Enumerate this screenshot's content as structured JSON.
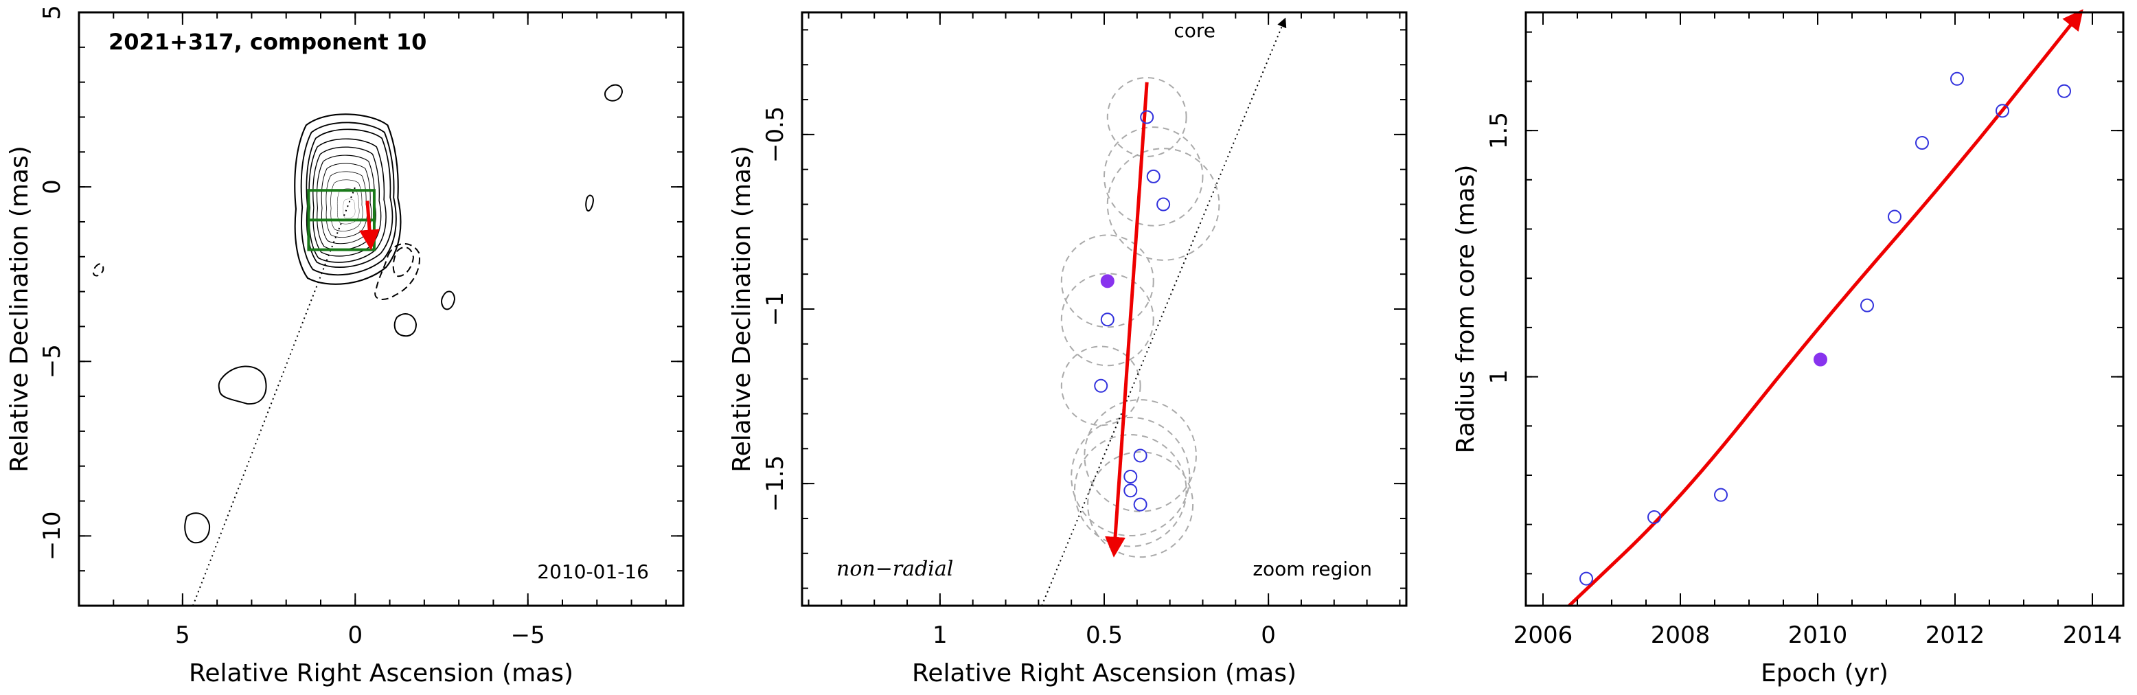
{
  "chart_data": [
    {
      "type": "scatter",
      "panel": "map",
      "title": "2021+317, component 10",
      "annotation": "2010-01-16",
      "xlabel": "Relative Right Ascension (mas)",
      "ylabel": "Relative Declination (mas)",
      "xlim": [
        8.0,
        -9.5
      ],
      "ylim": [
        -12.0,
        5.0
      ],
      "xticks": [
        5,
        0,
        -5
      ],
      "xtick_labels": [
        "5",
        "0",
        "−5"
      ],
      "yticks": [
        5,
        0,
        -5,
        -10
      ],
      "ytick_labels": [
        "5",
        "0",
        "−5",
        "−10"
      ],
      "core_line": {
        "from": [
          4.7,
          -12.0
        ],
        "to": [
          0.0,
          0.0
        ]
      },
      "zoom_box": {
        "x": [
          1.35,
          -0.55
        ],
        "y": [
          -1.8,
          -0.1
        ]
      },
      "motion_vector": {
        "from": [
          -0.35,
          -0.4
        ],
        "to": [
          -0.45,
          -1.7
        ]
      },
      "colors": {
        "contour": "#000000",
        "box": "#1a7a1a",
        "vector": "#ee0000",
        "points": "#3333dd"
      }
    },
    {
      "type": "scatter",
      "panel": "zoom",
      "annotations": [
        "core",
        "non−radial",
        "zoom region"
      ],
      "xlabel": "Relative Right Ascension (mas)",
      "ylabel": "Relative Declination (mas)",
      "xlim": [
        1.42,
        -0.42
      ],
      "ylim": [
        -1.85,
        -0.15
      ],
      "xticks": [
        1,
        0.5,
        0
      ],
      "xtick_labels": [
        "1",
        "0.5",
        "0"
      ],
      "yticks": [
        -0.5,
        -1,
        -1.5
      ],
      "ytick_labels": [
        "−0.5",
        "−1",
        "−1.5"
      ],
      "open_points": [
        {
          "x": 0.37,
          "y": -0.45,
          "r": 0.12
        },
        {
          "x": 0.35,
          "y": -0.62,
          "r": 0.15
        },
        {
          "x": 0.32,
          "y": -0.7,
          "r": 0.17
        },
        {
          "x": 0.49,
          "y": -1.03,
          "r": 0.14
        },
        {
          "x": 0.51,
          "y": -1.22,
          "r": 0.12
        },
        {
          "x": 0.39,
          "y": -1.42,
          "r": 0.17
        },
        {
          "x": 0.42,
          "y": -1.48,
          "r": 0.18
        },
        {
          "x": 0.42,
          "y": -1.52,
          "r": 0.17
        },
        {
          "x": 0.39,
          "y": -1.56,
          "r": 0.16
        }
      ],
      "filled_points": [
        {
          "x": 0.49,
          "y": -0.92,
          "r": 0.14
        }
      ],
      "motion_vector": {
        "from": [
          0.37,
          -0.35
        ],
        "to": [
          0.47,
          -1.7
        ]
      },
      "core_line": {
        "from": [
          0.69,
          -1.85
        ],
        "to": [
          -0.05,
          -0.17
        ]
      }
    },
    {
      "type": "scatter",
      "panel": "radius",
      "xlabel": "Epoch (yr)",
      "ylabel": "Radius from core (mas)",
      "xlim": [
        2005.75,
        2014.45
      ],
      "ylim": [
        0.535,
        1.74
      ],
      "xticks": [
        2006,
        2008,
        2010,
        2012,
        2014
      ],
      "xtick_labels": [
        "2006",
        "2008",
        "2010",
        "2012",
        "2014"
      ],
      "yticks": [
        1,
        1.5
      ],
      "ytick_labels": [
        "1",
        "1.5"
      ],
      "open_points": [
        {
          "x": 2006.63,
          "y": 0.59
        },
        {
          "x": 2007.62,
          "y": 0.715
        },
        {
          "x": 2008.59,
          "y": 0.76
        },
        {
          "x": 2010.72,
          "y": 1.145
        },
        {
          "x": 2011.12,
          "y": 1.325
        },
        {
          "x": 2011.52,
          "y": 1.475
        },
        {
          "x": 2012.03,
          "y": 1.605
        },
        {
          "x": 2012.69,
          "y": 1.54
        },
        {
          "x": 2013.59,
          "y": 1.58
        }
      ],
      "filled_points": [
        {
          "x": 2010.04,
          "y": 1.035
        }
      ],
      "fit_curve": [
        {
          "x": 2006.38,
          "y": 0.535
        },
        {
          "x": 2008.0,
          "y": 0.75
        },
        {
          "x": 2010.0,
          "y": 1.1
        },
        {
          "x": 2012.0,
          "y": 1.42
        },
        {
          "x": 2013.83,
          "y": 1.74
        }
      ]
    }
  ]
}
